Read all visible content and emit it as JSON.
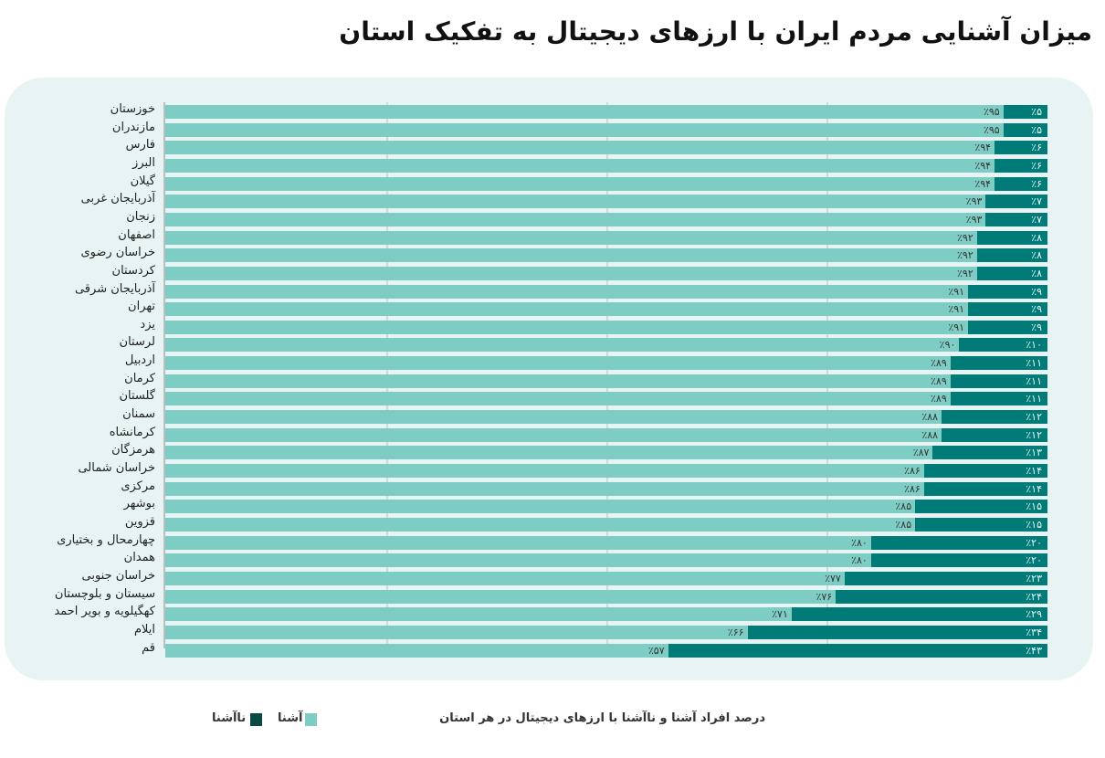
{
  "chart_data": {
    "type": "bar",
    "orientation": "horizontal",
    "stacked": "100%",
    "title": "میزان آشنایی مردم ایران با ارزهای دیجیتال به تفکیک استان",
    "subtitle": "درصد افراد آشنا و ناآشنا با ارزهای دیجیتال در هر استان",
    "xlim": [
      0,
      100
    ],
    "grid": true,
    "legend_placement": "bottom-left",
    "categories": [
      "خوزستان",
      "مازندران",
      "فارس",
      "البرز",
      "گیلان",
      "آذربایجان غربی",
      "زنجان",
      "اصفهان",
      "خراسان رضوی",
      "کردستان",
      "آذربایجان شرقی",
      "تهران",
      "یزد",
      "لرستان",
      "اردبیل",
      "کرمان",
      "گلستان",
      "سمنان",
      "کرمانشاه",
      "هرمزگان",
      "خراسان شمالی",
      "مرکزی",
      "بوشهر",
      "قزوین",
      "چهارمحال و بختیاری",
      "همدان",
      "خراسان جنوبی",
      "سیستان و بلوچستان",
      "کهگیلویه و بویر احمد",
      "ایلام",
      "قم"
    ],
    "series": [
      {
        "name": "آشنا",
        "color": "#7ecdc4",
        "values": [
          95,
          95,
          94,
          94,
          94,
          93,
          93,
          92,
          92,
          92,
          91,
          91,
          91,
          90,
          89,
          89,
          89,
          88,
          88,
          87,
          86,
          86,
          85,
          85,
          80,
          80,
          77,
          76,
          71,
          66,
          57
        ]
      },
      {
        "name": "ناآشنا",
        "color": "#007b78",
        "legend_color": "#0a4a45",
        "values": [
          5,
          5,
          6,
          6,
          6,
          7,
          7,
          8,
          8,
          8,
          9,
          9,
          9,
          10,
          11,
          11,
          11,
          12,
          12,
          13,
          14,
          14,
          15,
          15,
          20,
          20,
          23,
          24,
          29,
          34,
          43
        ]
      }
    ],
    "value_format": "٪{v}"
  }
}
